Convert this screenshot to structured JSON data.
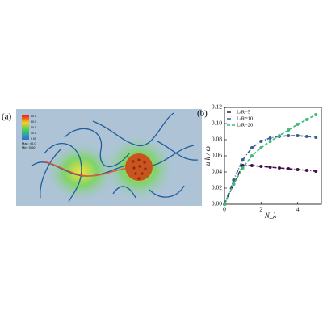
{
  "panel_a": {
    "label": "(a)",
    "colorbar_ticks": [
      "40.0",
      "30.0",
      "20.0",
      "10.0",
      "0.00"
    ],
    "max_label": "Max: 40.0",
    "min_label": "Min: 0.00"
  },
  "chart_data": {
    "type": "line",
    "panel_label": "(b)",
    "y_label": "u k / ω",
    "x_label": "N_λ",
    "x": [
      0,
      0.5,
      1,
      1.5,
      2,
      2.5,
      3,
      3.5,
      4,
      4.5,
      5
    ],
    "series": [
      {
        "name": "L/R=5",
        "color": "#44114f",
        "linestyle": "dashdot",
        "values": [
          0,
          0.025,
          0.048,
          0.048,
          0.047,
          0.046,
          0.045,
          0.044,
          0.043,
          0.042,
          0.041
        ]
      },
      {
        "name": "L/R=10",
        "color": "#355f8d",
        "linestyle": "dashdot",
        "values": [
          0,
          0.03,
          0.055,
          0.07,
          0.078,
          0.082,
          0.084,
          0.085,
          0.085,
          0.084,
          0.083
        ]
      },
      {
        "name": "L/R=20",
        "color": "#3cbb75",
        "linestyle": "dashed",
        "values": [
          0,
          0.025,
          0.045,
          0.06,
          0.07,
          0.078,
          0.085,
          0.092,
          0.099,
          0.105,
          0.111
        ]
      }
    ],
    "xlim": [
      0,
      5.3
    ],
    "ylim": [
      0,
      0.12
    ],
    "xticks": [
      0,
      2,
      4
    ],
    "yticks": [
      {
        "value": 0,
        "label": "0.00"
      },
      {
        "value": 0.02,
        "label": "0.02"
      },
      {
        "value": 0.04,
        "label": "0.04"
      },
      {
        "value": 0.06,
        "label": "0.06"
      },
      {
        "value": 0.08,
        "label": "0.08"
      },
      {
        "value": 0.1,
        "label": "0.10"
      },
      {
        "value": 0.12,
        "label": "0.12"
      }
    ],
    "legend": "upper left"
  }
}
